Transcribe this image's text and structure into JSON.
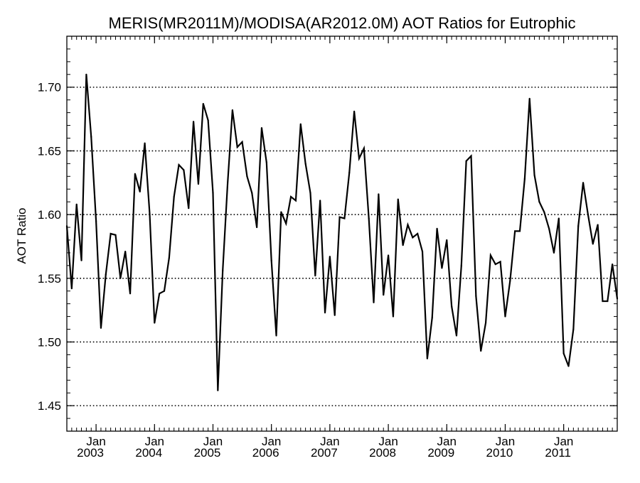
{
  "chart_data": {
    "type": "line",
    "title": "MERIS(MR2011M)/MODISA(AR2012.0M)  AOT Ratios for Eutrophic",
    "xlabel": "",
    "ylabel": "AOT Ratio",
    "ylim": [
      1.43,
      1.74
    ],
    "xlim": [
      "2002-07",
      "2011-12"
    ],
    "yticks": [
      1.45,
      1.5,
      1.55,
      1.6,
      1.65,
      1.7
    ],
    "ytick_labels": [
      "1.45",
      "1.50",
      "1.55",
      "1.60",
      "1.65",
      "1.70"
    ],
    "xticks": [
      {
        "month": "Jan",
        "year": "2003",
        "date": "2003-01"
      },
      {
        "month": "Jan",
        "year": "2004",
        "date": "2004-01"
      },
      {
        "month": "Jan",
        "year": "2005",
        "date": "2005-01"
      },
      {
        "month": "Jan",
        "year": "2006",
        "date": "2006-01"
      },
      {
        "month": "Jan",
        "year": "2007",
        "date": "2007-01"
      },
      {
        "month": "Jan",
        "year": "2008",
        "date": "2008-01"
      },
      {
        "month": "Jan",
        "year": "2009",
        "date": "2009-01"
      },
      {
        "month": "Jan",
        "year": "2010",
        "date": "2010-01"
      },
      {
        "month": "Jan",
        "year": "2011",
        "date": "2011-01"
      }
    ],
    "grid": {
      "horizontal": true,
      "vertical": false,
      "style": "dotted"
    },
    "series": [
      {
        "color": "#000000",
        "x": [
          "2002-07",
          "2002-08",
          "2002-09",
          "2002-10",
          "2002-11",
          "2002-12",
          "2003-01",
          "2003-02",
          "2003-03",
          "2003-04",
          "2003-05",
          "2003-06",
          "2003-07",
          "2003-08",
          "2003-09",
          "2003-10",
          "2003-11",
          "2003-12",
          "2004-01",
          "2004-02",
          "2004-03",
          "2004-04",
          "2004-05",
          "2004-06",
          "2004-07",
          "2004-08",
          "2004-09",
          "2004-10",
          "2004-11",
          "2004-12",
          "2005-01",
          "2005-02",
          "2005-03",
          "2005-04",
          "2005-05",
          "2005-06",
          "2005-07",
          "2005-08",
          "2005-09",
          "2005-10",
          "2005-11",
          "2005-12",
          "2006-01",
          "2006-02",
          "2006-03",
          "2006-04",
          "2006-05",
          "2006-06",
          "2006-07",
          "2006-08",
          "2006-09",
          "2006-10",
          "2006-11",
          "2006-12",
          "2007-01",
          "2007-02",
          "2007-03",
          "2007-04",
          "2007-05",
          "2007-06",
          "2007-07",
          "2007-08",
          "2007-09",
          "2007-10",
          "2007-11",
          "2007-12",
          "2008-01",
          "2008-02",
          "2008-03",
          "2008-04",
          "2008-05",
          "2008-06",
          "2008-07",
          "2008-08",
          "2008-09",
          "2008-10",
          "2008-11",
          "2008-12",
          "2009-01",
          "2009-02",
          "2009-03",
          "2009-04",
          "2009-05",
          "2009-06",
          "2009-07",
          "2009-08",
          "2009-09",
          "2009-10",
          "2009-11",
          "2009-12",
          "2010-01",
          "2010-02",
          "2010-03",
          "2010-04",
          "2010-05",
          "2010-06",
          "2010-07",
          "2010-08",
          "2010-09",
          "2010-10",
          "2010-11",
          "2010-12",
          "2011-01",
          "2011-02",
          "2011-03",
          "2011-04",
          "2011-05",
          "2011-06",
          "2011-07",
          "2011-08",
          "2011-09",
          "2011-10",
          "2011-11",
          "2011-12"
        ],
        "values": [
          1.591,
          1.542,
          1.608,
          1.564,
          1.71,
          1.661,
          1.595,
          1.511,
          1.553,
          1.585,
          1.584,
          1.55,
          1.571,
          1.538,
          1.632,
          1.618,
          1.656,
          1.601,
          1.515,
          1.538,
          1.54,
          1.566,
          1.614,
          1.639,
          1.635,
          1.605,
          1.673,
          1.624,
          1.687,
          1.674,
          1.617,
          1.462,
          1.556,
          1.624,
          1.682,
          1.653,
          1.657,
          1.63,
          1.617,
          1.59,
          1.668,
          1.641,
          1.564,
          1.505,
          1.602,
          1.593,
          1.614,
          1.611,
          1.671,
          1.64,
          1.617,
          1.552,
          1.611,
          1.523,
          1.567,
          1.521,
          1.598,
          1.597,
          1.633,
          1.681,
          1.644,
          1.652,
          1.597,
          1.531,
          1.616,
          1.537,
          1.568,
          1.52,
          1.612,
          1.576,
          1.592,
          1.582,
          1.585,
          1.571,
          1.487,
          1.519,
          1.589,
          1.558,
          1.58,
          1.528,
          1.505,
          1.56,
          1.642,
          1.646,
          1.536,
          1.493,
          1.515,
          1.568,
          1.561,
          1.563,
          1.52,
          1.548,
          1.587,
          1.587,
          1.628,
          1.691,
          1.631,
          1.61,
          1.602,
          1.589,
          1.57,
          1.597,
          1.491,
          1.481,
          1.51,
          1.591,
          1.625,
          1.6,
          1.577,
          1.592,
          1.532,
          1.532,
          1.561,
          1.534
        ]
      }
    ]
  }
}
